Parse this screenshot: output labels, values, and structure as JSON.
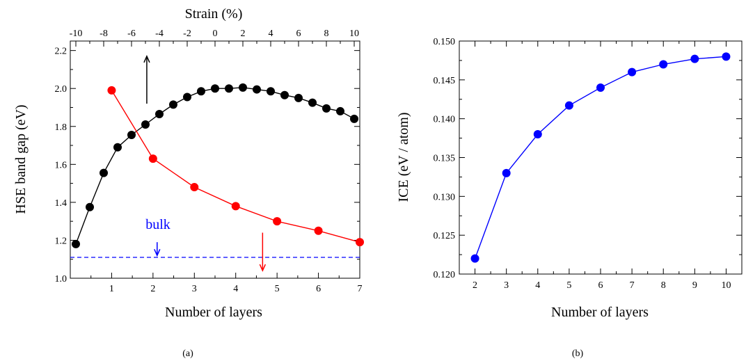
{
  "chart_data": [
    {
      "type": "line",
      "caption": "(a)",
      "xlabel": "Number of layers",
      "ylabel": "HSE band gap (eV)",
      "x2label": "Strain (%)",
      "xlim": [
        0,
        7
      ],
      "ylim": [
        1.0,
        2.25
      ],
      "x2lim": [
        -10.4,
        10.4
      ],
      "xticks": [
        1,
        2,
        3,
        4,
        5,
        6,
        7
      ],
      "yticks": [
        1.0,
        1.2,
        1.4,
        1.6,
        1.8,
        2.0,
        2.2
      ],
      "x2ticks": [
        -10,
        -8,
        -6,
        -4,
        -2,
        0,
        2,
        4,
        6,
        8,
        10
      ],
      "grid": false,
      "colors": {
        "strain": "#000000",
        "layers": "#ff0000",
        "bulk": "#0000ff"
      },
      "series": [
        {
          "axis": "top",
          "color": "#000000",
          "x": [
            -10,
            -9,
            -8,
            -7,
            -6,
            -5,
            -4,
            -3,
            -2,
            -1,
            0,
            1,
            2,
            3,
            4,
            5,
            6,
            7,
            8,
            9,
            10
          ],
          "y": [
            1.18,
            1.375,
            1.555,
            1.69,
            1.755,
            1.81,
            1.865,
            1.915,
            1.955,
            1.985,
            2.0,
            2.0,
            2.005,
            1.995,
            1.985,
            1.965,
            1.95,
            1.925,
            1.895,
            1.88,
            1.84
          ]
        },
        {
          "axis": "bottom",
          "color": "#ff0000",
          "x": [
            1,
            2,
            3,
            4,
            5,
            6,
            7
          ],
          "y": [
            1.99,
            1.63,
            1.48,
            1.38,
            1.3,
            1.25,
            1.19
          ]
        }
      ],
      "reference_line": {
        "y": 1.11,
        "label": "bulk",
        "color": "#0000ff",
        "style": "dashed"
      },
      "annotations": [
        {
          "type": "arrow",
          "direction": "up",
          "color": "#000000",
          "x": 1.85,
          "y_from": 1.92,
          "y_to": 2.17
        },
        {
          "type": "arrow",
          "direction": "down",
          "color": "#ff0000",
          "x": 4.65,
          "y_from": 1.24,
          "y_to": 1.04
        },
        {
          "type": "arrow",
          "direction": "down",
          "color": "#0000ff",
          "x": 2.1,
          "y_from": 1.19,
          "y_to": 1.12
        }
      ]
    },
    {
      "type": "line",
      "caption": "(b)",
      "xlabel": "Number of layers",
      "ylabel": "ICE (eV / atom)",
      "xlim": [
        1.5,
        10.5
      ],
      "ylim": [
        0.12,
        0.15
      ],
      "xticks": [
        2,
        3,
        4,
        5,
        6,
        7,
        8,
        9,
        10
      ],
      "yticks": [
        0.12,
        0.125,
        0.13,
        0.135,
        0.14,
        0.145,
        0.15
      ],
      "ytick_labels": [
        "0.120",
        "0.125",
        "0.130",
        "0.135",
        "0.140",
        "0.145",
        "0.150"
      ],
      "grid": false,
      "series": [
        {
          "color": "#0000ff",
          "x": [
            2,
            3,
            4,
            5,
            6,
            7,
            8,
            9,
            10
          ],
          "y": [
            0.122,
            0.133,
            0.138,
            0.1417,
            0.144,
            0.146,
            0.147,
            0.1477,
            0.148
          ]
        }
      ]
    }
  ]
}
